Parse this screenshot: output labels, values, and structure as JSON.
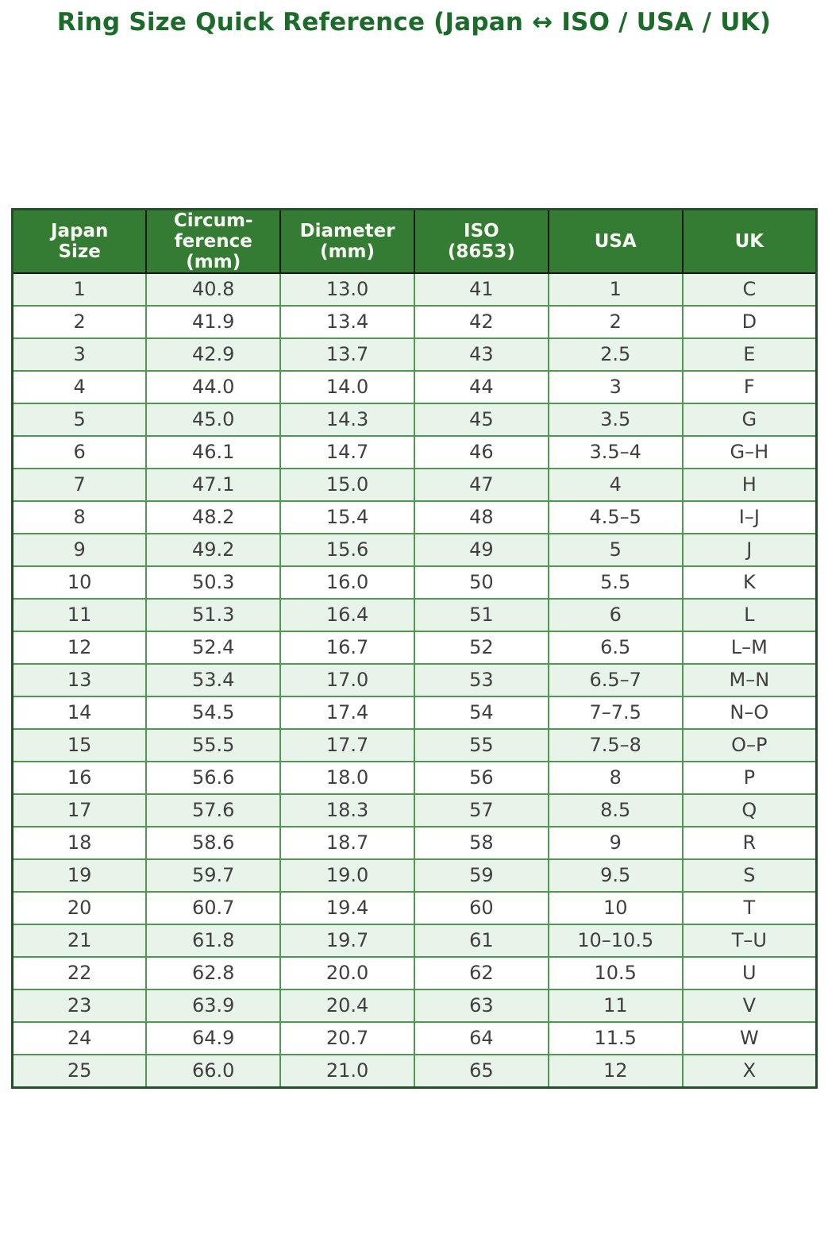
{
  "title": "Ring Size Quick Reference (Japan ↔ ISO / USA / UK)",
  "colors": {
    "title_text": "#1c6b2b",
    "header_bg": "#347b34",
    "header_text": "#f7faf2",
    "header_divider": "#161616",
    "body_border": "#4d9950",
    "stripe_row_bg": "#e8f4e9",
    "plain_row_bg": "#ffffff",
    "body_text": "#404040",
    "outer_border": "#264d2a"
  },
  "chart_data": {
    "type": "table",
    "title": "Ring Size Quick Reference (Japan ↔ ISO / USA / UK)",
    "columns": [
      "Japan Size",
      "Circum-ference (mm)",
      "Diameter (mm)",
      "ISO (8653)",
      "USA",
      "UK"
    ],
    "header_lines": [
      "Japan\nSize",
      "Circum-\nference\n(mm)",
      "Diameter\n(mm)",
      "ISO\n(8653)",
      "USA",
      "UK"
    ],
    "rows": [
      [
        "1",
        "40.8",
        "13.0",
        "41",
        "1",
        "C"
      ],
      [
        "2",
        "41.9",
        "13.4",
        "42",
        "2",
        "D"
      ],
      [
        "3",
        "42.9",
        "13.7",
        "43",
        "2.5",
        "E"
      ],
      [
        "4",
        "44.0",
        "14.0",
        "44",
        "3",
        "F"
      ],
      [
        "5",
        "45.0",
        "14.3",
        "45",
        "3.5",
        "G"
      ],
      [
        "6",
        "46.1",
        "14.7",
        "46",
        "3.5–4",
        "G–H"
      ],
      [
        "7",
        "47.1",
        "15.0",
        "47",
        "4",
        "H"
      ],
      [
        "8",
        "48.2",
        "15.4",
        "48",
        "4.5–5",
        "I–J"
      ],
      [
        "9",
        "49.2",
        "15.6",
        "49",
        "5",
        "J"
      ],
      [
        "10",
        "50.3",
        "16.0",
        "50",
        "5.5",
        "K"
      ],
      [
        "11",
        "51.3",
        "16.4",
        "51",
        "6",
        "L"
      ],
      [
        "12",
        "52.4",
        "16.7",
        "52",
        "6.5",
        "L–M"
      ],
      [
        "13",
        "53.4",
        "17.0",
        "53",
        "6.5–7",
        "M–N"
      ],
      [
        "14",
        "54.5",
        "17.4",
        "54",
        "7–7.5",
        "N–O"
      ],
      [
        "15",
        "55.5",
        "17.7",
        "55",
        "7.5–8",
        "O–P"
      ],
      [
        "16",
        "56.6",
        "18.0",
        "56",
        "8",
        "P"
      ],
      [
        "17",
        "57.6",
        "18.3",
        "57",
        "8.5",
        "Q"
      ],
      [
        "18",
        "58.6",
        "18.7",
        "58",
        "9",
        "R"
      ],
      [
        "19",
        "59.7",
        "19.0",
        "59",
        "9.5",
        "S"
      ],
      [
        "20",
        "60.7",
        "19.4",
        "60",
        "10",
        "T"
      ],
      [
        "21",
        "61.8",
        "19.7",
        "61",
        "10–10.5",
        "T–U"
      ],
      [
        "22",
        "62.8",
        "20.0",
        "62",
        "10.5",
        "U"
      ],
      [
        "23",
        "63.9",
        "20.4",
        "63",
        "11",
        "V"
      ],
      [
        "24",
        "64.9",
        "20.7",
        "64",
        "11.5",
        "W"
      ],
      [
        "25",
        "66.0",
        "21.0",
        "65",
        "12",
        "X"
      ]
    ],
    "layout": {
      "header_position": "top",
      "striped": true,
      "stripe_pattern": "odd rows light green, even rows white",
      "grid": true
    }
  }
}
